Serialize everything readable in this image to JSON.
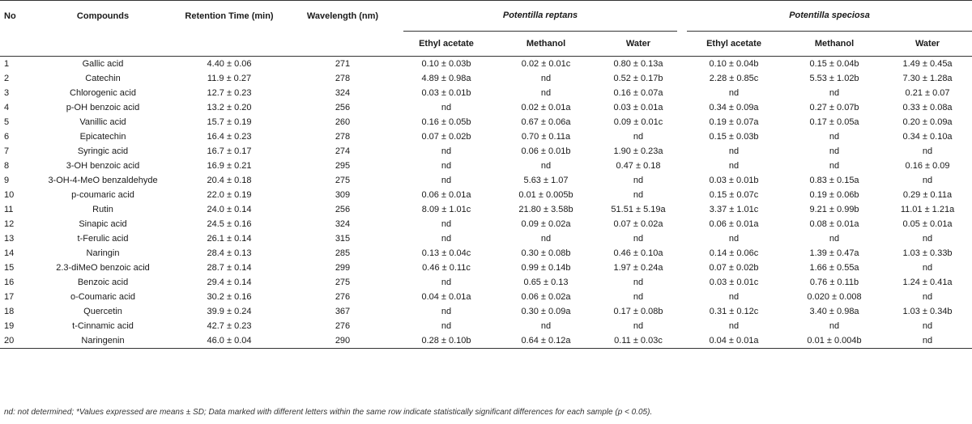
{
  "table": {
    "headers": {
      "no": "No",
      "compounds": "Compounds",
      "retention": "Retention Time (min)",
      "wavelength": "Wavelength (nm)",
      "group1": "Potentilla reptans",
      "group2": "Potentilla speciosa",
      "sub": [
        "Ethyl acetate",
        "Methanol",
        "Water",
        "Ethyl acetate",
        "Methanol",
        "Water"
      ]
    },
    "rows": [
      {
        "no": "1",
        "compound": "Gallic acid",
        "rt": "4.40 ± 0.06",
        "wl": "271",
        "v": [
          "0.10 ± 0.03b",
          "0.02 ± 0.01c",
          "0.80 ± 0.13a",
          "0.10 ± 0.04b",
          "0.15 ± 0.04b",
          "1.49 ± 0.45a"
        ]
      },
      {
        "no": "2",
        "compound": "Catechin",
        "rt": "11.9 ± 0.27",
        "wl": "278",
        "v": [
          "4.89 ± 0.98a",
          "nd",
          "0.52 ± 0.17b",
          "2.28 ± 0.85c",
          "5.53 ± 1.02b",
          "7.30 ± 1.28a"
        ]
      },
      {
        "no": "3",
        "compound": "Chlorogenic acid",
        "rt": "12.7 ± 0.23",
        "wl": "324",
        "v": [
          "0.03 ± 0.01b",
          "nd",
          "0.16 ± 0.07a",
          "nd",
          "nd",
          "0.21 ± 0.07"
        ]
      },
      {
        "no": "4",
        "compound": "p-OH benzoic acid",
        "rt": "13.2 ± 0.20",
        "wl": "256",
        "v": [
          "nd",
          "0.02 ± 0.01a",
          "0.03 ± 0.01a",
          "0.34 ± 0.09a",
          "0.27 ± 0.07b",
          "0.33 ± 0.08a"
        ]
      },
      {
        "no": "5",
        "compound": "Vanillic acid",
        "rt": "15.7 ± 0.19",
        "wl": "260",
        "v": [
          "0.16 ± 0.05b",
          "0.67 ± 0.06a",
          "0.09 ± 0.01c",
          "0.19 ± 0.07a",
          "0.17 ± 0.05a",
          "0.20 ± 0.09a"
        ]
      },
      {
        "no": "6",
        "compound": "Epicatechin",
        "rt": "16.4 ± 0.23",
        "wl": "278",
        "v": [
          "0.07 ± 0.02b",
          "0.70 ± 0.11a",
          "nd",
          "0.15 ± 0.03b",
          "nd",
          "0.34 ± 0.10a"
        ]
      },
      {
        "no": "7",
        "compound": "Syringic acid",
        "rt": "16.7 ± 0.17",
        "wl": "274",
        "v": [
          "nd",
          "0.06 ± 0.01b",
          "1.90 ± 0.23a",
          "nd",
          "nd",
          "nd"
        ]
      },
      {
        "no": "8",
        "compound": "3-OH benzoic acid",
        "rt": "16.9 ± 0.21",
        "wl": "295",
        "v": [
          "nd",
          "nd",
          "0.47 ± 0.18",
          "nd",
          "nd",
          "0.16 ± 0.09"
        ]
      },
      {
        "no": "9",
        "compound": "3-OH-4-MeO benzaldehyde",
        "rt": "20.4 ± 0.18",
        "wl": "275",
        "v": [
          "nd",
          "5.63 ± 1.07",
          "nd",
          "0.03 ± 0.01b",
          "0.83 ± 0.15a",
          "nd"
        ]
      },
      {
        "no": "10",
        "compound": "p-coumaric acid",
        "rt": "22.0 ± 0.19",
        "wl": "309",
        "v": [
          "0.06 ± 0.01a",
          "0.01 ± 0.005b",
          "nd",
          "0.15 ± 0.07c",
          "0.19 ± 0.06b",
          "0.29 ± 0.11a"
        ]
      },
      {
        "no": "11",
        "compound": "Rutin",
        "rt": "24.0 ± 0.14",
        "wl": "256",
        "v": [
          "8.09 ± 1.01c",
          "21.80 ± 3.58b",
          "51.51 ± 5.19a",
          "3.37 ± 1.01c",
          "9.21 ± 0.99b",
          "11.01 ± 1.21a"
        ]
      },
      {
        "no": "12",
        "compound": "Sinapic acid",
        "rt": "24.5 ± 0.16",
        "wl": "324",
        "v": [
          "nd",
          "0.09 ± 0.02a",
          "0.07 ± 0.02a",
          "0.06 ± 0.01a",
          "0.08 ± 0.01a",
          "0.05 ± 0.01a"
        ]
      },
      {
        "no": "13",
        "compound": "t-Ferulic acid",
        "rt": "26.1 ± 0.14",
        "wl": "315",
        "v": [
          "nd",
          "nd",
          "nd",
          "nd",
          "nd",
          "nd"
        ]
      },
      {
        "no": "14",
        "compound": "Naringin",
        "rt": "28.4 ± 0.13",
        "wl": "285",
        "v": [
          "0.13 ± 0.04c",
          "0.30 ± 0.08b",
          "0.46 ± 0.10a",
          "0.14 ± 0.06c",
          "1.39 ± 0.47a",
          "1.03 ± 0.33b"
        ]
      },
      {
        "no": "15",
        "compound": "2.3-diMeO benzoic acid",
        "rt": "28.7 ± 0.14",
        "wl": "299",
        "v": [
          "0.46 ± 0.11c",
          "0.99 ± 0.14b",
          "1.97 ± 0.24a",
          "0.07 ± 0.02b",
          "1.66 ± 0.55a",
          "nd"
        ]
      },
      {
        "no": "16",
        "compound": "Benzoic acid",
        "rt": "29.4 ± 0.14",
        "wl": "275",
        "v": [
          "nd",
          "0.65 ± 0.13",
          "nd",
          "0.03 ± 0.01c",
          "0.76 ± 0.11b",
          "1.24 ± 0.41a"
        ]
      },
      {
        "no": "17",
        "compound": "o-Coumaric acid",
        "rt": "30.2 ± 0.16",
        "wl": "276",
        "v": [
          "0.04 ± 0.01a",
          "0.06 ± 0.02a",
          "nd",
          "nd",
          "0.020 ± 0.008",
          "nd"
        ]
      },
      {
        "no": "18",
        "compound": "Quercetin",
        "rt": "39.9 ± 0.24",
        "wl": "367",
        "v": [
          "nd",
          "0.30 ± 0.09a",
          "0.17 ± 0.08b",
          "0.31 ± 0.12c",
          "3.40 ± 0.98a",
          "1.03 ± 0.34b"
        ]
      },
      {
        "no": "19",
        "compound": "t-Cinnamic acid",
        "rt": "42.7 ± 0.23",
        "wl": "276",
        "v": [
          "nd",
          "nd",
          "nd",
          "nd",
          "nd",
          "nd"
        ]
      },
      {
        "no": "20",
        "compound": "Naringenin",
        "rt": "46.0 ± 0.04",
        "wl": "290",
        "v": [
          "0.28 ± 0.10b",
          "0.64 ± 0.12a",
          "0.11 ± 0.03c",
          "0.04 ± 0.01a",
          "0.01 ± 0.004b",
          "nd"
        ]
      }
    ]
  },
  "footnote": "nd: not determined; *Values expressed are means ± SD; Data marked with different letters within the same row indicate statistically significant differences for each sample (p < 0.05)."
}
